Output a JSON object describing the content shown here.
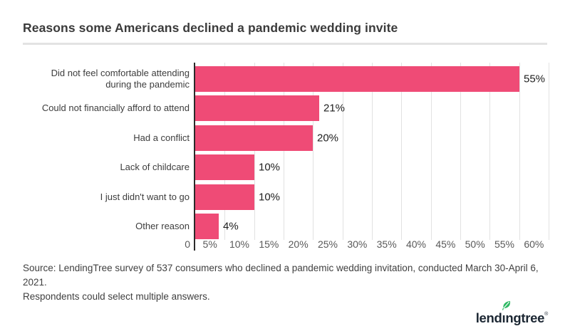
{
  "title": "Reasons some Americans declined a pandemic wedding invite",
  "chart_data": {
    "type": "bar",
    "orientation": "horizontal",
    "title": "Reasons some Americans declined a pandemic wedding invite",
    "categories": [
      "Did not feel comfortable attending during the pandemic",
      "Could not financially afford to attend",
      "Had a conflict",
      "Lack of childcare",
      "I just didn't want to go",
      "Other reason"
    ],
    "values": [
      55,
      21,
      20,
      10,
      10,
      4
    ],
    "data_labels": [
      "55%",
      "21%",
      "20%",
      "10%",
      "10%",
      "4%"
    ],
    "x_axis": {
      "min": 0,
      "max": 60,
      "tick_interval": 5,
      "tick_labels": [
        "0",
        "5%",
        "10%",
        "15%",
        "20%",
        "25%",
        "30%",
        "35%",
        "40%",
        "45%",
        "50%",
        "55%",
        "60%"
      ],
      "labels_between_gridlines": true
    },
    "grid": "vertical-only",
    "legend": "none",
    "bar_color": "#ef4b76",
    "gridline_color": "#e2e2e2",
    "axis_color": "#2b2b2b"
  },
  "source": {
    "line1": "Source: LendingTree survey of 537 consumers who declined a pandemic wedding invitation, conducted March 30-April 6, 2021.",
    "line2": "Respondents could select multiple answers."
  },
  "logo": {
    "text_before_i": "lend",
    "text_after_i": "ngtree",
    "full_text": "lendingtree",
    "registered_mark": "®",
    "navy_color": "#1c2733",
    "leaf_color": "#2eb863"
  }
}
